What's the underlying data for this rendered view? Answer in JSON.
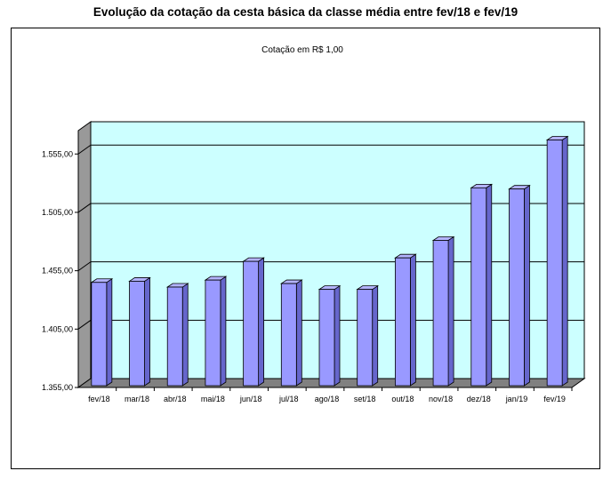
{
  "chart_data": {
    "type": "bar",
    "title": "Evolução da cotação da cesta básica da classe média entre fev/18 e fev/19",
    "subtitle": "Cotação em R$ 1,00",
    "categories": [
      "fev/18",
      "mar/18",
      "abr/18",
      "mai/18",
      "jun/18",
      "jul/18",
      "ago/18",
      "set/18",
      "out/18",
      "nov/18",
      "dez/18",
      "jan/19",
      "fev/19"
    ],
    "values": [
      1445,
      1446,
      1441,
      1447,
      1463,
      1444,
      1439,
      1439,
      1466,
      1481,
      1526,
      1525,
      1567
    ],
    "y_ticks": [
      "1.355,00",
      "1.405,00",
      "1.455,00",
      "1.505,00",
      "1.555,00"
    ],
    "y_tick_values": [
      1355,
      1405,
      1455,
      1505,
      1555
    ],
    "ylim": [
      1355,
      1575
    ],
    "grid": true,
    "legend": "none",
    "colors": {
      "bar": "#9999ff",
      "plot_background": "#ccffff",
      "floor": "#808080",
      "wall_side": "#999999"
    }
  }
}
